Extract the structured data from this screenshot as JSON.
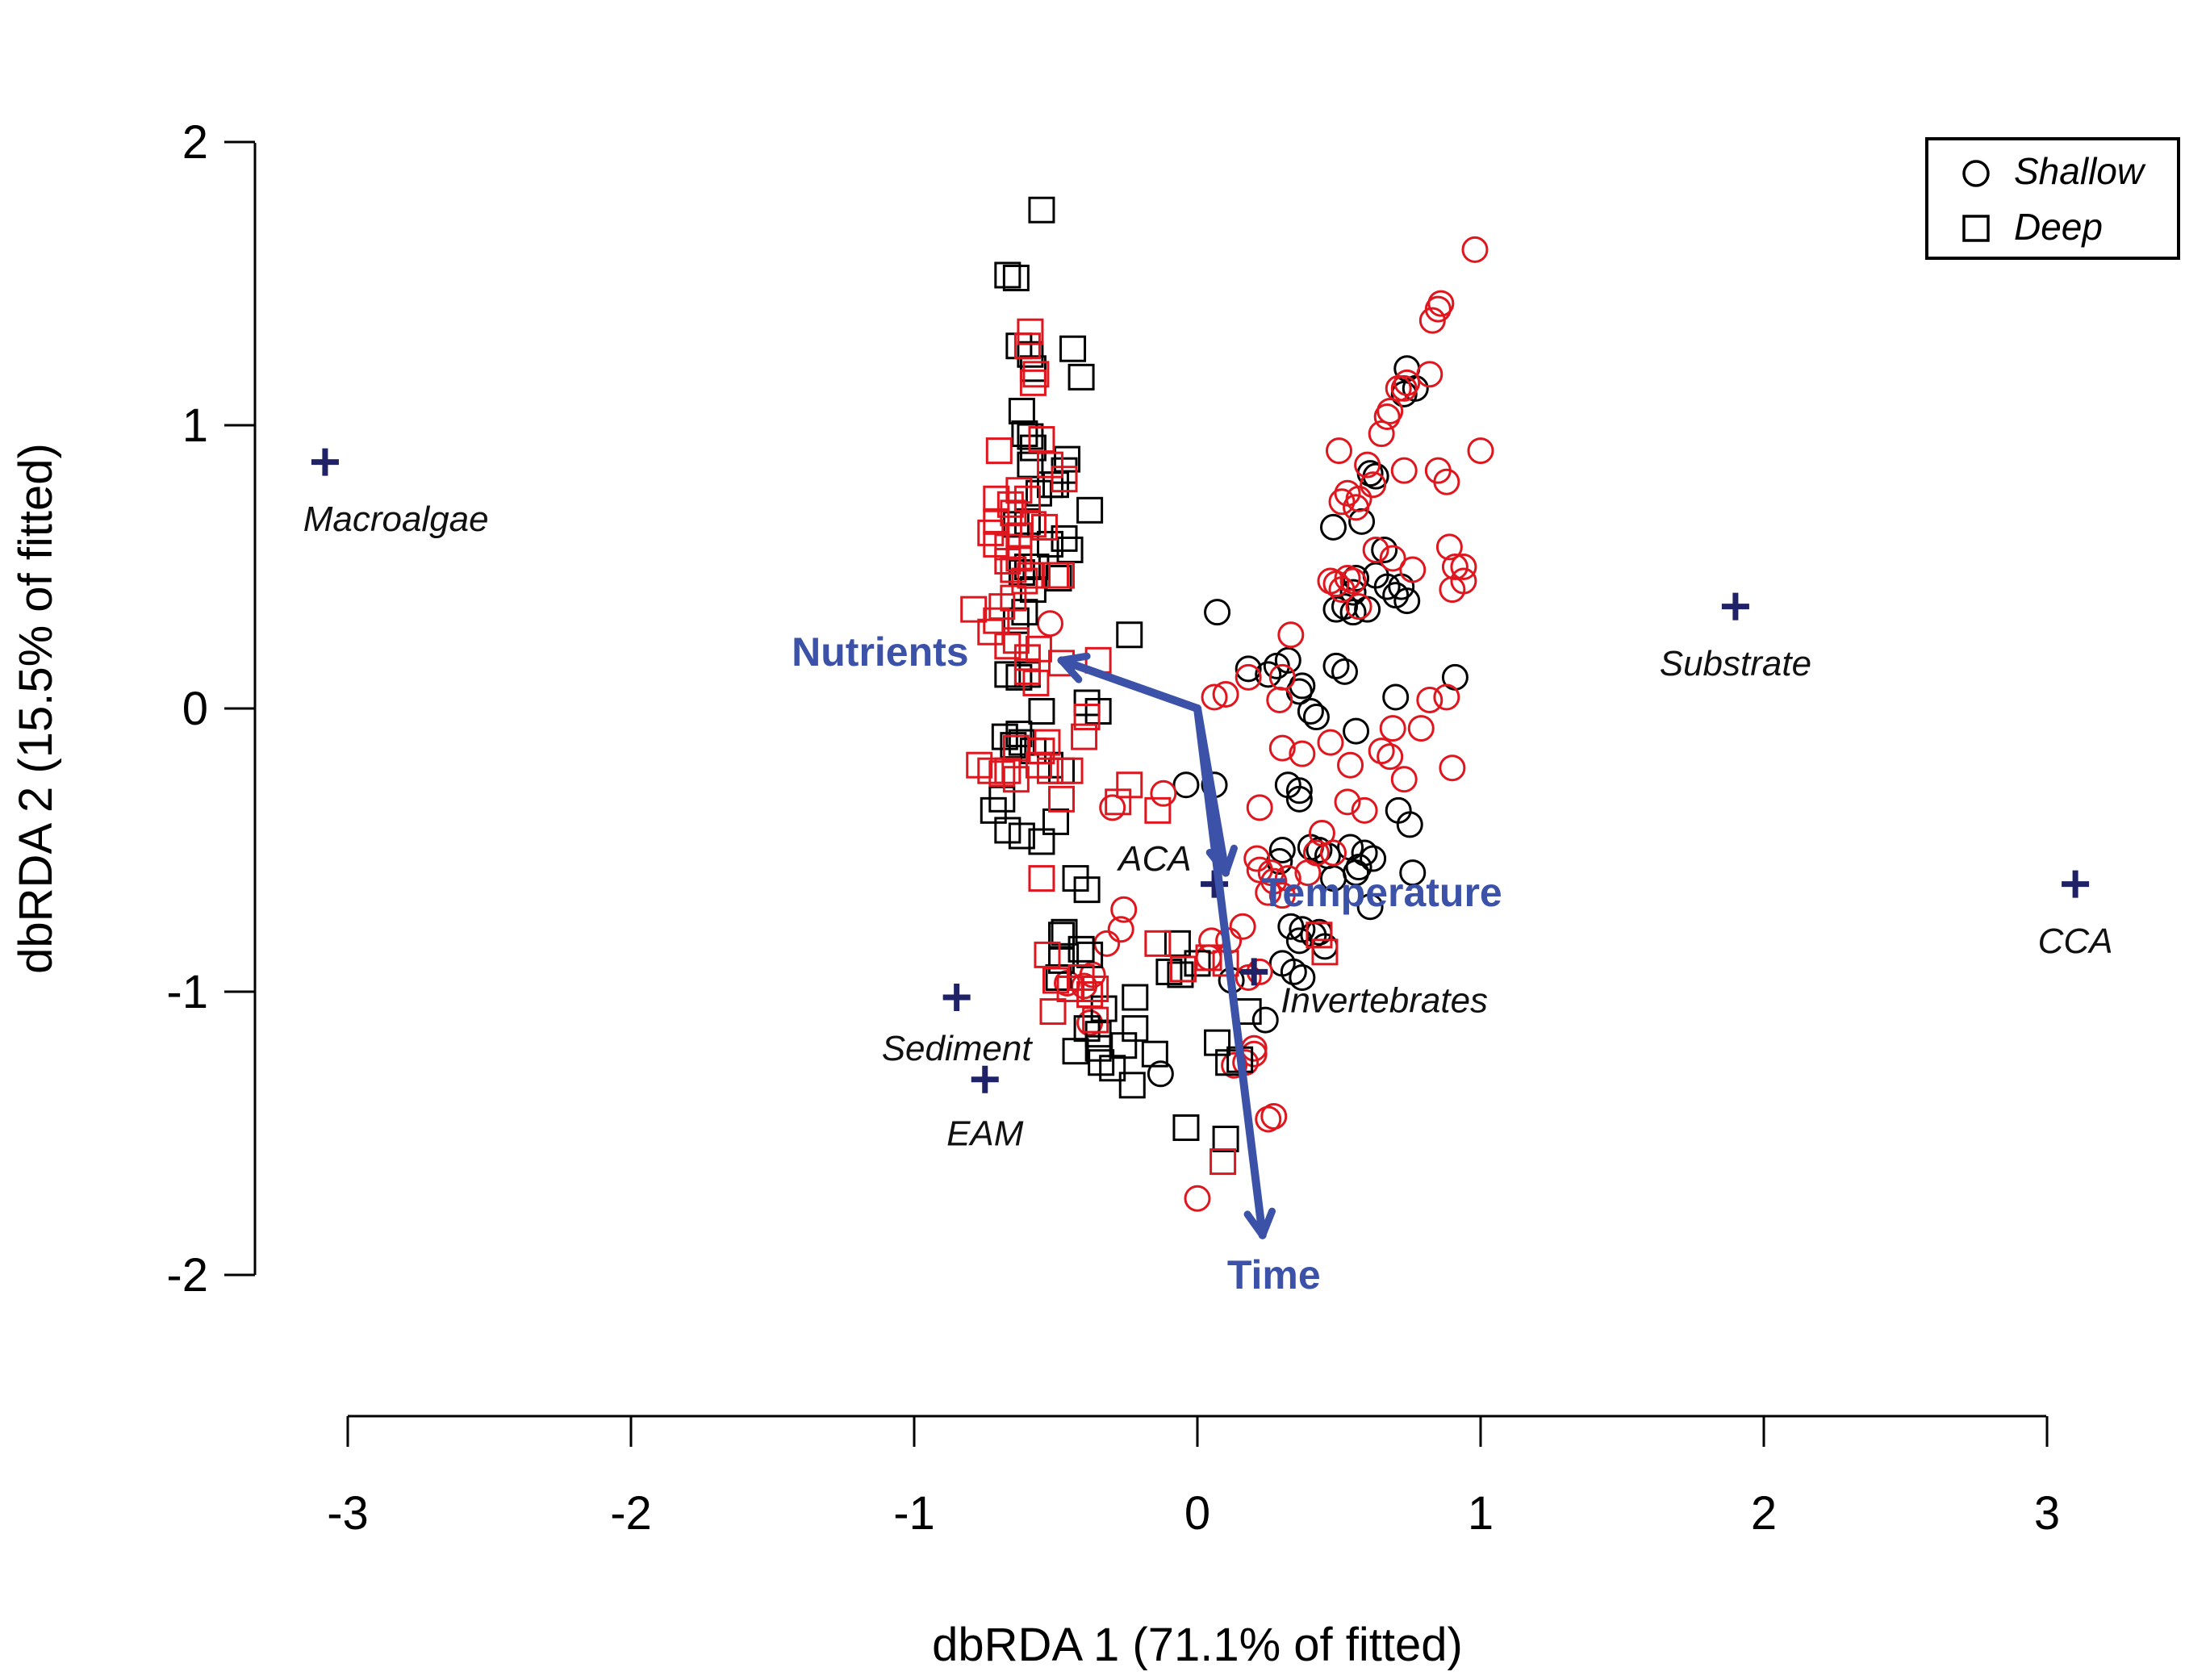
{
  "chart_data": {
    "type": "scatter",
    "title": "",
    "xlabel": "dbRDA 1 (71.1% of fitted)",
    "ylabel": "dbRDA 2 (15.5% of fitted)",
    "xlim": [
      -3,
      3
    ],
    "ylim": [
      -2,
      2
    ],
    "xticks": [
      -3,
      -2,
      -1,
      0,
      1,
      2,
      3
    ],
    "yticks": [
      -2,
      -1,
      0,
      1,
      2
    ],
    "xtick_labels": [
      "-3",
      "-2",
      "-1",
      "0",
      "1",
      "2",
      "3"
    ],
    "ytick_labels": [
      "-2",
      "-1",
      "0",
      "1",
      "2"
    ],
    "grid": false,
    "legend_position": "top-right",
    "legend": [
      {
        "label": "Shallow",
        "marker": "circle"
      },
      {
        "label": "Deep",
        "marker": "square"
      }
    ],
    "colors": {
      "black": "#000000",
      "red": "#e0161e",
      "vector": "#3b52a8",
      "species": "#1f2266"
    },
    "vectors": [
      {
        "label": "Nutrients",
        "x": -0.48,
        "y": 0.17,
        "label_x": -1.12,
        "label_y": 0.2
      },
      {
        "label": "Temperature",
        "x": 0.1,
        "y": -0.58,
        "label_x": 0.65,
        "label_y": -0.65
      },
      {
        "label": "Time",
        "x": 0.23,
        "y": -1.86,
        "label_x": 0.27,
        "label_y": -2.0
      }
    ],
    "species": [
      {
        "label": "Macroalgae",
        "x": -3.08,
        "y": 0.87,
        "label_x": -2.83,
        "label_y": 0.67
      },
      {
        "label": "Substrate",
        "x": 1.9,
        "y": 0.36,
        "label_x": 1.9,
        "label_y": 0.16
      },
      {
        "label": "CCA",
        "x": 3.1,
        "y": -0.62,
        "label_x": 3.1,
        "label_y": -0.82
      },
      {
        "label": "ACA",
        "x": 0.06,
        "y": -0.62,
        "label_x": -0.15,
        "label_y": -0.53
      },
      {
        "label": "Invertebrates",
        "x": 0.2,
        "y": -0.93,
        "label_x": 0.66,
        "label_y": -1.03
      },
      {
        "label": "Sediment",
        "x": -0.85,
        "y": -1.02,
        "label_x": -0.85,
        "label_y": -1.2
      },
      {
        "label": "EAM",
        "x": -0.75,
        "y": -1.31,
        "label_x": -0.75,
        "label_y": -1.5
      }
    ],
    "series": [
      {
        "name": "Shallow black",
        "marker": "circle",
        "color": "black",
        "x": [
          0.74,
          0.77,
          0.73,
          0.63,
          0.61,
          0.58,
          0.66,
          0.63,
          0.72,
          0.48,
          0.55,
          0.56,
          0.6,
          0.67,
          0.7,
          0.74,
          0.52,
          0.49,
          0.55,
          0.07,
          0.18,
          0.25,
          0.28,
          0.32,
          0.37,
          0.49,
          0.52,
          0.36,
          0.4,
          0.42,
          0.91,
          0.7,
          0.56,
          -0.04,
          0.06,
          0.32,
          0.36,
          0.36,
          0.54,
          0.59,
          0.62,
          0.71,
          0.75,
          0.57,
          0.56,
          0.4,
          0.3,
          0.29,
          0.43,
          0.46,
          0.48,
          0.61,
          0.76,
          0.37,
          0.41,
          0.45,
          0.3,
          0.34,
          0.37,
          0.12,
          0.24,
          -0.13,
          0.43,
          0.33,
          0.36
        ],
        "y": [
          1.2,
          1.13,
          1.11,
          0.82,
          0.83,
          0.66,
          0.56,
          0.47,
          0.43,
          0.64,
          0.41,
          0.46,
          0.35,
          0.43,
          0.4,
          0.38,
          0.36,
          0.35,
          0.34,
          0.34,
          0.14,
          0.12,
          0.15,
          0.17,
          0.08,
          0.15,
          0.13,
          0.06,
          -0.01,
          -0.03,
          0.11,
          0.04,
          -0.08,
          -0.27,
          -0.27,
          -0.27,
          -0.29,
          -0.32,
          -0.49,
          -0.51,
          -0.53,
          -0.36,
          -0.41,
          -0.56,
          -0.58,
          -0.49,
          -0.5,
          -0.54,
          -0.5,
          -0.52,
          -0.6,
          -0.7,
          -0.58,
          -0.78,
          -0.8,
          -0.84,
          -0.9,
          -0.93,
          -0.95,
          -0.96,
          -1.1,
          -1.29,
          -0.79,
          -0.77,
          -0.82
        ]
      },
      {
        "name": "Shallow red",
        "marker": "circle",
        "color": "red",
        "x": [
          0.98,
          0.86,
          0.85,
          0.83,
          0.82,
          0.65,
          0.67,
          0.68,
          0.71,
          0.73,
          0.74,
          0.85,
          1.0,
          0.5,
          0.62,
          0.88,
          0.94,
          0.91,
          0.51,
          0.53,
          0.56,
          0.57,
          0.6,
          0.73,
          0.89,
          0.94,
          0.9,
          0.63,
          0.69,
          0.76,
          0.47,
          0.53,
          0.55,
          0.49,
          0.51,
          0.57,
          0.33,
          0.18,
          0.3,
          0.1,
          0.06,
          0.29,
          0.88,
          0.82,
          0.9,
          0.37,
          0.53,
          0.59,
          0.65,
          0.68,
          0.73,
          0.69,
          0.79,
          0.54,
          0.47,
          0.3,
          0.22,
          0.44,
          0.42,
          0.48,
          0.39,
          0.32,
          0.26,
          0.21,
          0.27,
          0.25,
          0.3,
          0.22,
          0.16,
          0.11,
          0.05,
          0.18,
          0.22,
          0.25,
          -0.3,
          -0.12,
          -0.26,
          -0.27,
          -0.32,
          -0.37,
          -0.4,
          -0.46,
          -0.38,
          0.04,
          0.2,
          0.27,
          0.17,
          0.13,
          0.2,
          -0.52,
          0.0
        ],
        "y": [
          1.62,
          1.43,
          1.41,
          1.37,
          1.18,
          0.97,
          1.03,
          1.05,
          1.13,
          1.13,
          1.15,
          0.84,
          0.91,
          0.91,
          0.79,
          0.8,
          0.5,
          0.5,
          0.73,
          0.76,
          0.71,
          0.74,
          0.86,
          0.84,
          0.57,
          0.45,
          0.42,
          0.56,
          0.53,
          0.49,
          0.45,
          0.46,
          0.45,
          0.44,
          0.42,
          0.36,
          0.26,
          0.11,
          0.11,
          0.05,
          0.04,
          0.03,
          0.04,
          0.03,
          -0.21,
          -0.16,
          -0.33,
          -0.36,
          -0.15,
          -0.17,
          -0.25,
          -0.07,
          -0.07,
          -0.2,
          -0.12,
          -0.14,
          -0.35,
          -0.44,
          -0.51,
          -0.51,
          -0.58,
          -0.6,
          -0.58,
          -0.53,
          -0.61,
          -0.65,
          -0.66,
          -0.57,
          -0.77,
          -0.82,
          -0.82,
          -0.95,
          -0.93,
          -1.45,
          -0.35,
          -0.3,
          -0.71,
          -0.78,
          -0.83,
          -0.94,
          -0.98,
          -0.97,
          -1.11,
          -0.88,
          -1.2,
          -1.44,
          -1.25,
          -1.26,
          -1.22,
          0.3,
          -1.73
        ]
      },
      {
        "name": "Deep black",
        "marker": "square",
        "color": "black",
        "x": [
          -0.55,
          -0.67,
          -0.64,
          -0.63,
          -0.58,
          -0.59,
          -0.44,
          -0.41,
          -0.62,
          -0.59,
          -0.61,
          -0.58,
          -0.59,
          -0.47,
          -0.46,
          -0.52,
          -0.5,
          -0.56,
          -0.6,
          -0.64,
          -0.38,
          -0.47,
          -0.52,
          -0.57,
          -0.6,
          -0.62,
          -0.45,
          -0.49,
          -0.58,
          -0.61,
          -0.64,
          -0.24,
          -0.63,
          -0.6,
          -0.67,
          -0.39,
          -0.35,
          -0.55,
          -0.62,
          -0.52,
          -0.58,
          -0.65,
          -0.68,
          -0.63,
          -0.48,
          -0.55,
          -0.5,
          -0.43,
          -0.39,
          -0.47,
          -0.48,
          -0.62,
          -0.67,
          -0.72,
          -0.69,
          -0.41,
          -0.38,
          -0.48,
          -0.49,
          -0.33,
          -0.35,
          -0.1,
          -0.06,
          -0.22,
          -0.39,
          -0.43,
          -0.26,
          -0.15,
          -0.35,
          -0.23,
          -0.34,
          -0.3,
          -0.04,
          0.1,
          -0.22,
          0.0,
          -0.07,
          0.15,
          0.11,
          0.07,
          0.18
        ],
        "y": [
          1.76,
          1.53,
          1.52,
          1.28,
          1.2,
          1.25,
          1.27,
          1.17,
          1.05,
          0.96,
          0.97,
          0.92,
          0.86,
          0.84,
          0.88,
          0.79,
          0.79,
          0.76,
          0.66,
          0.65,
          0.7,
          0.6,
          0.58,
          0.5,
          0.5,
          0.48,
          0.56,
          0.46,
          0.42,
          0.34,
          0.31,
          0.26,
          0.11,
          0.12,
          0.12,
          0.02,
          -0.01,
          -0.01,
          -0.12,
          -0.2,
          -0.15,
          -0.13,
          -0.1,
          -0.09,
          -0.22,
          -0.47,
          -0.4,
          -0.6,
          -0.64,
          -0.79,
          -0.8,
          -0.45,
          -0.43,
          -0.36,
          -0.32,
          -0.85,
          -0.87,
          -0.89,
          -0.95,
          -1.06,
          -1.15,
          -0.93,
          -0.94,
          -1.02,
          -1.13,
          -1.21,
          -1.19,
          -1.22,
          -1.2,
          -1.33,
          -1.25,
          -1.27,
          -1.48,
          -1.52,
          -1.13,
          -0.9,
          -0.83,
          -1.24,
          -1.25,
          -1.18,
          -1.07
        ]
      },
      {
        "name": "Deep red",
        "marker": "square",
        "color": "red",
        "x": [
          -0.59,
          -0.6,
          -0.57,
          -0.58,
          -0.7,
          -0.55,
          -0.71,
          -0.6,
          -0.47,
          -0.52,
          -0.63,
          -0.71,
          -0.66,
          -0.65,
          -0.58,
          -0.54,
          -0.63,
          -0.67,
          -0.71,
          -0.63,
          -0.73,
          -0.67,
          -0.65,
          -0.59,
          -0.5,
          -0.48,
          -0.61,
          -0.79,
          -0.69,
          -0.65,
          -0.71,
          -0.73,
          -0.64,
          -0.67,
          -0.56,
          -0.48,
          -0.6,
          -0.57,
          -0.6,
          -0.56,
          -0.64,
          -0.67,
          -0.73,
          -0.69,
          -0.77,
          -0.64,
          -0.53,
          -0.55,
          -0.52,
          -0.45,
          -0.4,
          -0.39,
          -0.35,
          -0.24,
          -0.14,
          -0.28,
          -0.48,
          -0.55,
          -0.53,
          -0.5,
          -0.45,
          -0.41,
          -0.38,
          -0.36,
          -0.05,
          0.1,
          0.04,
          -0.14,
          -0.36,
          -0.51,
          0.43,
          0.45,
          0.09
        ],
        "y": [
          1.33,
          1.28,
          1.18,
          1.15,
          0.91,
          0.95,
          0.74,
          0.74,
          0.81,
          0.86,
          0.77,
          0.66,
          0.72,
          0.69,
          0.65,
          0.64,
          0.61,
          0.57,
          0.58,
          0.53,
          0.62,
          0.52,
          0.49,
          0.47,
          0.47,
          0.47,
          0.45,
          0.35,
          0.36,
          0.39,
          0.31,
          0.27,
          0.24,
          0.22,
          0.21,
          0.16,
          0.18,
          0.09,
          0.13,
          -0.2,
          -0.14,
          -0.22,
          -0.22,
          -0.23,
          -0.2,
          -0.25,
          -0.12,
          -0.15,
          -0.22,
          -0.22,
          -0.1,
          -0.03,
          0.17,
          -0.27,
          -0.36,
          -0.33,
          -0.32,
          -0.6,
          -0.87,
          -0.96,
          -0.99,
          -0.95,
          -1.01,
          -0.99,
          -0.92,
          -0.9,
          -0.88,
          -0.83,
          -1.1,
          -1.07,
          -0.8,
          -0.86,
          -1.6
        ]
      }
    ]
  }
}
